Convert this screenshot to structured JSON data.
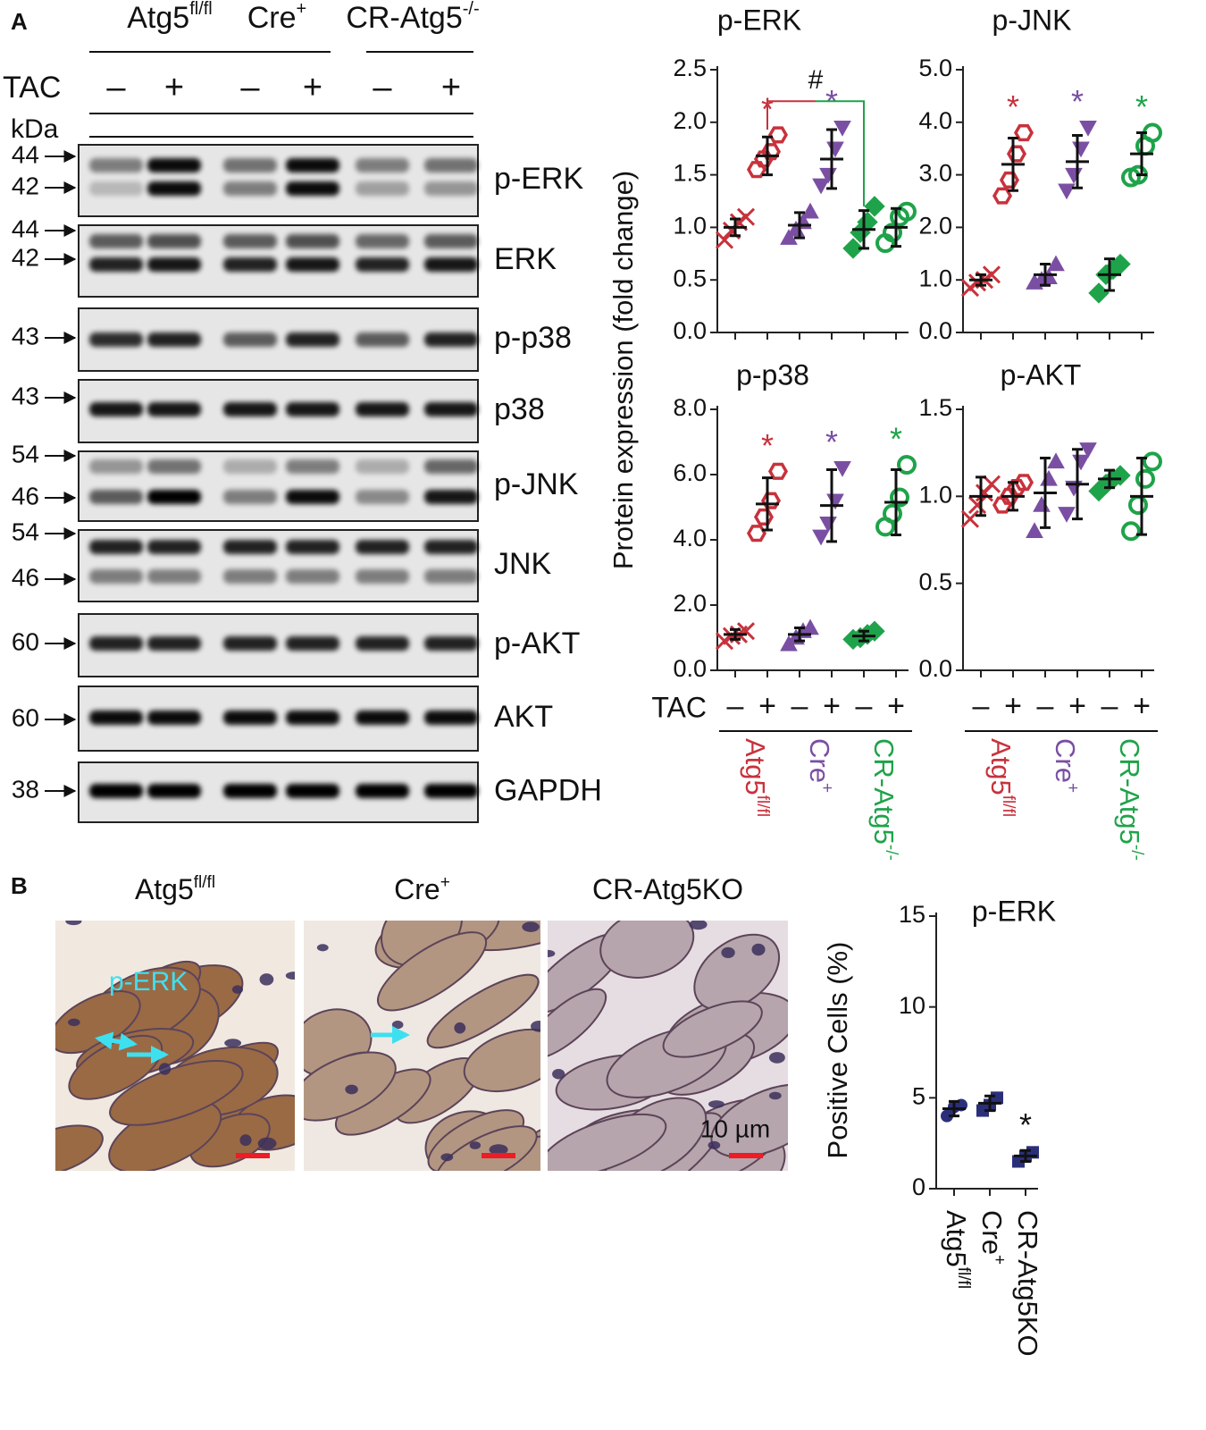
{
  "panel_labels": {
    "a": "A",
    "b": "B"
  },
  "blot": {
    "groups": [
      {
        "base": "Atg5",
        "sup": "fl/fl"
      },
      {
        "base": "Cre",
        "sup": "+"
      },
      {
        "base": "CR-Atg5",
        "sup": "-/-"
      }
    ],
    "treatment_label": "TAC",
    "treatment_signs": [
      "–",
      "+",
      "–",
      "+",
      "–",
      "+"
    ],
    "size_label": "kDa",
    "rows": [
      {
        "protein": "p-ERK",
        "markers": [
          44,
          42
        ]
      },
      {
        "protein": "ERK",
        "markers": [
          44,
          42
        ]
      },
      {
        "protein": "p-p38",
        "markers": [
          43
        ]
      },
      {
        "protein": "p38",
        "markers": [
          43
        ]
      },
      {
        "protein": "p-JNK",
        "markers": [
          54,
          46
        ]
      },
      {
        "protein": "JNK",
        "markers": [
          54,
          46
        ]
      },
      {
        "protein": "p-AKT",
        "markers": [
          60
        ]
      },
      {
        "protein": "AKT",
        "markers": [
          60
        ]
      },
      {
        "protein": "GAPDH",
        "markers": [
          38
        ]
      }
    ]
  },
  "micrographs": {
    "captions": [
      {
        "base": "Atg5",
        "sup": "fl/fl"
      },
      {
        "base": "Cre",
        "sup": "+"
      },
      {
        "base": "CR-Atg5KO"
      }
    ],
    "stain_label": "p-ERK",
    "scale_label": "10 µm"
  },
  "chart_data": [
    {
      "type": "dotplot",
      "title": "p-ERK",
      "ylabel": "Protein expression (fold change)",
      "ylim": [
        0,
        2.5
      ],
      "yticks": [
        {
          "value": 0,
          "label": "0.0"
        },
        0.5,
        {
          "value": 1,
          "label": "1.0"
        },
        1.5,
        {
          "value": 2,
          "label": "2.0"
        },
        2.5
      ],
      "categories": [
        null,
        null,
        null,
        null,
        null,
        null
      ],
      "significance": "#",
      "series": [
        {
          "color": "#c8323c",
          "lanes": [
            {
              "marker": "x",
              "points": [
                0.88,
                0.97,
                1.05,
                1.1
              ],
              "mean": 1.0,
              "sd": 0.08
            },
            {
              "marker": "hexagon",
              "points": [
                1.55,
                1.65,
                1.72,
                1.88
              ],
              "mean": 1.68,
              "sd": 0.18,
              "label": "*"
            }
          ]
        },
        {
          "color": "#7a4fa3",
          "lanes": [
            {
              "marker": "triangle-up",
              "points": [
                0.9,
                0.98,
                1.05,
                1.15
              ],
              "mean": 1.02,
              "sd": 0.12
            },
            {
              "marker": "triangle-down",
              "points": [
                1.4,
                1.5,
                1.75,
                1.95
              ],
              "mean": 1.65,
              "sd": 0.28,
              "label": "*"
            }
          ]
        },
        {
          "color": "#1fa34a",
          "lanes": [
            {
              "marker": "diamond",
              "points": [
                0.8,
                0.95,
                1.05,
                1.2
              ],
              "mean": 0.98,
              "sd": 0.18
            },
            {
              "marker": "circle",
              "points": [
                0.85,
                0.95,
                1.1,
                1.15
              ],
              "mean": 1.0,
              "sd": 0.18
            }
          ]
        }
      ]
    },
    {
      "type": "dotplot",
      "title": "p-JNK",
      "ylim": [
        0,
        5
      ],
      "yticks": [
        {
          "value": 0,
          "label": "0.0"
        },
        {
          "value": 1,
          "label": "1.0"
        },
        {
          "value": 2,
          "label": "2.0"
        },
        {
          "value": 3,
          "label": "3.0"
        },
        {
          "value": 4,
          "label": "4.0"
        },
        {
          "value": 5,
          "label": "5.0"
        }
      ],
      "categories": [
        null,
        null,
        null,
        null,
        null,
        null
      ],
      "series": [
        {
          "color": "#c8323c",
          "lanes": [
            {
              "marker": "x",
              "points": [
                0.85,
                0.95,
                1.0,
                1.1
              ],
              "mean": 1.0,
              "sd": 0.1
            },
            {
              "marker": "hexagon",
              "points": [
                2.6,
                2.9,
                3.4,
                3.8
              ],
              "mean": 3.2,
              "sd": 0.5,
              "label": "*"
            }
          ]
        },
        {
          "color": "#7a4fa3",
          "lanes": [
            {
              "marker": "triangle-up",
              "points": [
                0.95,
                1.0,
                1.05,
                1.3
              ],
              "mean": 1.1,
              "sd": 0.2
            },
            {
              "marker": "triangle-down",
              "points": [
                2.7,
                3.0,
                3.5,
                3.9
              ],
              "mean": 3.25,
              "sd": 0.5,
              "label": "*"
            }
          ]
        },
        {
          "color": "#1fa34a",
          "lanes": [
            {
              "marker": "diamond",
              "points": [
                0.75,
                1.1,
                1.2,
                1.3
              ],
              "mean": 1.1,
              "sd": 0.3
            },
            {
              "marker": "circle",
              "points": [
                2.95,
                3.0,
                3.55,
                3.8
              ],
              "mean": 3.4,
              "sd": 0.4,
              "label": "*"
            }
          ]
        }
      ]
    },
    {
      "type": "dotplot",
      "title": "p-p38",
      "xlabel": "TAC",
      "ylim": [
        0,
        8
      ],
      "yticks": [
        {
          "value": 0,
          "label": "0.0"
        },
        {
          "value": 2,
          "label": "2.0"
        },
        {
          "value": 4,
          "label": "4.0"
        },
        {
          "value": 6,
          "label": "6.0"
        },
        {
          "value": 8,
          "label": "8.0"
        }
      ],
      "categories": [
        "–",
        "+",
        "–",
        "+",
        "–",
        "+"
      ],
      "series": [
        {
          "name": {
            "base": "Atg5",
            "sup": "fl/fl"
          },
          "color": "#c8323c",
          "lanes": [
            {
              "marker": "x",
              "points": [
                0.9,
                1.05,
                1.1,
                1.2
              ],
              "mean": 1.1,
              "sd": 0.15
            },
            {
              "marker": "hexagon",
              "points": [
                4.2,
                4.7,
                5.2,
                6.1
              ],
              "mean": 5.1,
              "sd": 0.8,
              "label": "*"
            }
          ]
        },
        {
          "name": {
            "base": "Cre",
            "sup": "+"
          },
          "color": "#7a4fa3",
          "lanes": [
            {
              "marker": "triangle-up",
              "points": [
                0.8,
                1.0,
                1.2,
                1.3
              ],
              "mean": 1.1,
              "sd": 0.2
            },
            {
              "marker": "triangle-down",
              "points": [
                4.1,
                4.5,
                5.2,
                6.2
              ],
              "mean": 5.05,
              "sd": 1.1,
              "label": "*"
            }
          ]
        },
        {
          "name": {
            "base": "CR-Atg5",
            "sup": "-/-"
          },
          "color": "#1fa34a",
          "lanes": [
            {
              "marker": "diamond",
              "points": [
                0.95,
                1.0,
                1.1,
                1.2
              ],
              "mean": 1.05,
              "sd": 0.15
            },
            {
              "marker": "circle",
              "points": [
                4.4,
                4.8,
                5.3,
                6.3
              ],
              "mean": 5.15,
              "sd": 1.0,
              "label": "*"
            }
          ]
        }
      ]
    },
    {
      "type": "dotplot",
      "title": "p-AKT",
      "ylim": [
        0,
        1.5
      ],
      "yticks": [
        {
          "value": 0,
          "label": "0.0"
        },
        0.5,
        {
          "value": 1,
          "label": "1.0"
        },
        1.5
      ],
      "categories": [
        "–",
        "+",
        "–",
        "+",
        "–",
        "+"
      ],
      "series": [
        {
          "name": {
            "base": "Atg5",
            "sup": "fl/fl"
          },
          "color": "#c8323c",
          "lanes": [
            {
              "marker": "x",
              "points": [
                0.87,
                0.95,
                1.02,
                1.07
              ],
              "mean": 1.0,
              "sd": 0.11
            },
            {
              "marker": "hexagon",
              "points": [
                0.95,
                1.0,
                1.05,
                1.08
              ],
              "mean": 1.0,
              "sd": 0.08
            }
          ]
        },
        {
          "name": {
            "base": "Cre",
            "sup": "+"
          },
          "color": "#7a4fa3",
          "lanes": [
            {
              "marker": "triangle-up",
              "points": [
                0.8,
                0.95,
                1.1,
                1.2
              ],
              "mean": 1.02,
              "sd": 0.2
            },
            {
              "marker": "triangle-down",
              "points": [
                0.9,
                1.05,
                1.2,
                1.27
              ],
              "mean": 1.07,
              "sd": 0.2
            }
          ]
        },
        {
          "name": {
            "base": "CR-Atg5",
            "sup": "-/-"
          },
          "color": "#1fa34a",
          "lanes": [
            {
              "marker": "diamond",
              "points": [
                1.03,
                1.07,
                1.1,
                1.12
              ],
              "mean": 1.1,
              "sd": 0.05
            },
            {
              "marker": "circle",
              "points": [
                0.8,
                0.95,
                1.1,
                1.2
              ],
              "mean": 1.0,
              "sd": 0.22
            }
          ]
        }
      ]
    },
    {
      "type": "dotplot",
      "title": "p-ERK",
      "ylabel": "Positive Cells (%)",
      "ylim": [
        0,
        15
      ],
      "yticks": [
        0,
        5,
        10,
        15
      ],
      "categories": [
        {
          "base": "Atg5",
          "sup": "fl/fl"
        },
        {
          "base": "Cre",
          "sup": "+"
        },
        {
          "base": "CR-Atg5KO"
        }
      ],
      "series": [
        {
          "color": "#2b2f7a",
          "lanes": [
            {
              "marker": "dot",
              "points": [
                4.0,
                4.5,
                4.6
              ],
              "mean": 4.4,
              "sd": 0.4
            },
            {
              "marker": "square",
              "points": [
                4.3,
                4.6,
                5.0
              ],
              "mean": 4.7,
              "sd": 0.4
            },
            {
              "marker": "square",
              "points": [
                1.5,
                1.8,
                2.0
              ],
              "mean": 1.8,
              "sd": 0.3,
              "label": "*",
              "label_color": "#111111"
            }
          ]
        }
      ]
    }
  ]
}
